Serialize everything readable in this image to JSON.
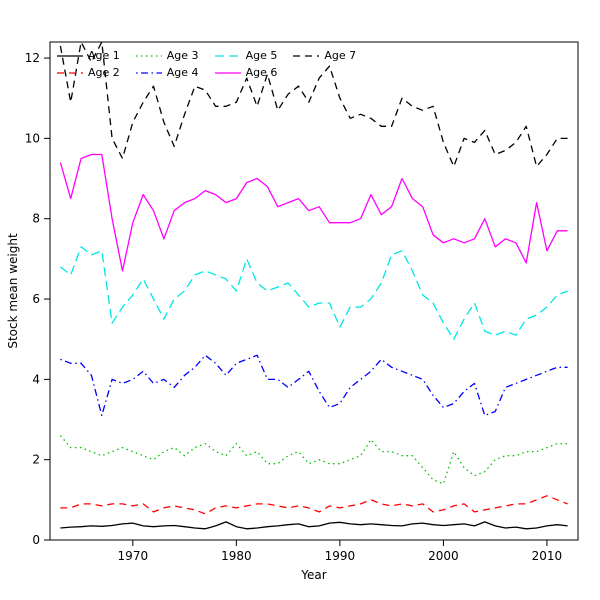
{
  "chart_data": {
    "type": "line",
    "title": "",
    "xlabel": "Year",
    "ylabel": "Stock mean weight",
    "xlim": [
      1962,
      2013
    ],
    "ylim": [
      0,
      12.4
    ],
    "xticks": [
      1970,
      1980,
      1990,
      2000,
      2010
    ],
    "yticks": [
      0,
      2,
      4,
      6,
      8,
      10,
      12
    ],
    "grid": false,
    "legend_position": "top-left",
    "x": [
      1963,
      1964,
      1965,
      1966,
      1967,
      1968,
      1969,
      1970,
      1971,
      1972,
      1973,
      1974,
      1975,
      1976,
      1977,
      1978,
      1979,
      1980,
      1981,
      1982,
      1983,
      1984,
      1985,
      1986,
      1987,
      1988,
      1989,
      1990,
      1991,
      1992,
      1993,
      1994,
      1995,
      1996,
      1997,
      1998,
      1999,
      2000,
      2001,
      2002,
      2003,
      2004,
      2005,
      2006,
      2007,
      2008,
      2009,
      2010,
      2011,
      2012
    ],
    "series": [
      {
        "name": "Age 1",
        "color": "#000000",
        "linestyle": "solid",
        "dash": "",
        "values": [
          0.3,
          0.32,
          0.33,
          0.35,
          0.34,
          0.36,
          0.4,
          0.42,
          0.35,
          0.33,
          0.35,
          0.36,
          0.33,
          0.3,
          0.28,
          0.35,
          0.45,
          0.33,
          0.28,
          0.3,
          0.33,
          0.35,
          0.38,
          0.4,
          0.33,
          0.35,
          0.42,
          0.44,
          0.4,
          0.38,
          0.4,
          0.38,
          0.36,
          0.35,
          0.4,
          0.42,
          0.38,
          0.36,
          0.38,
          0.4,
          0.35,
          0.45,
          0.35,
          0.3,
          0.32,
          0.28,
          0.3,
          0.35,
          0.38,
          0.35
        ]
      },
      {
        "name": "Age 2",
        "color": "#ff0000",
        "linestyle": "dashed",
        "dash": "7,5",
        "values": [
          0.8,
          0.8,
          0.9,
          0.9,
          0.85,
          0.9,
          0.9,
          0.85,
          0.9,
          0.7,
          0.8,
          0.85,
          0.8,
          0.75,
          0.65,
          0.8,
          0.85,
          0.8,
          0.85,
          0.9,
          0.9,
          0.85,
          0.8,
          0.85,
          0.8,
          0.7,
          0.85,
          0.8,
          0.85,
          0.9,
          1.0,
          0.9,
          0.85,
          0.9,
          0.85,
          0.9,
          0.7,
          0.75,
          0.85,
          0.9,
          0.7,
          0.75,
          0.8,
          0.85,
          0.9,
          0.9,
          1.0,
          1.1,
          1.0,
          0.9
        ]
      },
      {
        "name": "Age 3",
        "color": "#00c000",
        "linestyle": "dotted",
        "dash": "1.5,3.5",
        "values": [
          2.6,
          2.3,
          2.3,
          2.2,
          2.1,
          2.2,
          2.3,
          2.2,
          2.1,
          2.0,
          2.2,
          2.3,
          2.1,
          2.3,
          2.4,
          2.2,
          2.1,
          2.4,
          2.1,
          2.2,
          1.9,
          1.9,
          2.1,
          2.2,
          1.9,
          2.0,
          1.9,
          1.9,
          2.0,
          2.1,
          2.5,
          2.2,
          2.2,
          2.1,
          2.1,
          1.8,
          1.5,
          1.4,
          2.2,
          1.8,
          1.6,
          1.7,
          2.0,
          2.1,
          2.1,
          2.2,
          2.2,
          2.3,
          2.4,
          2.4
        ]
      },
      {
        "name": "Age 4",
        "color": "#0000ff",
        "linestyle": "dashdot",
        "dash": "1.5,3.5,7,3.5",
        "values": [
          4.5,
          4.4,
          4.4,
          4.1,
          3.1,
          4.0,
          3.9,
          4.0,
          4.2,
          3.9,
          4.0,
          3.8,
          4.1,
          4.3,
          4.6,
          4.4,
          4.1,
          4.4,
          4.5,
          4.6,
          4.0,
          4.0,
          3.8,
          4.0,
          4.2,
          3.7,
          3.3,
          3.4,
          3.8,
          4.0,
          4.2,
          4.5,
          4.3,
          4.2,
          4.1,
          4.0,
          3.6,
          3.3,
          3.4,
          3.7,
          3.9,
          3.1,
          3.2,
          3.8,
          3.9,
          4.0,
          4.1,
          4.2,
          4.3,
          4.3
        ]
      },
      {
        "name": "Age 5",
        "color": "#00e6e6",
        "linestyle": "longdash",
        "dash": "9,5",
        "values": [
          6.8,
          6.6,
          7.3,
          7.1,
          7.2,
          5.4,
          5.8,
          6.1,
          6.5,
          6.0,
          5.5,
          6.0,
          6.2,
          6.6,
          6.7,
          6.6,
          6.5,
          6.2,
          7.0,
          6.4,
          6.2,
          6.3,
          6.4,
          6.1,
          5.8,
          5.9,
          5.9,
          5.3,
          5.8,
          5.8,
          6.0,
          6.4,
          7.1,
          7.2,
          6.7,
          6.1,
          5.9,
          5.4,
          5.0,
          5.5,
          5.9,
          5.2,
          5.1,
          5.2,
          5.1,
          5.5,
          5.6,
          5.8,
          6.1,
          6.2
        ]
      },
      {
        "name": "Age 6",
        "color": "#ff00ff",
        "linestyle": "solid",
        "dash": "",
        "values": [
          9.4,
          8.5,
          9.5,
          9.6,
          9.6,
          8.0,
          6.7,
          7.9,
          8.6,
          8.2,
          7.5,
          8.2,
          8.4,
          8.5,
          8.7,
          8.6,
          8.4,
          8.5,
          8.9,
          9.0,
          8.8,
          8.3,
          8.4,
          8.5,
          8.2,
          8.3,
          7.9,
          7.9,
          7.9,
          8.0,
          8.6,
          8.1,
          8.3,
          9.0,
          8.5,
          8.3,
          7.6,
          7.4,
          7.5,
          7.4,
          7.5,
          8.0,
          7.3,
          7.5,
          7.4,
          6.9,
          8.4,
          7.2,
          7.7,
          7.7
        ]
      },
      {
        "name": "Age 7",
        "color": "#000000",
        "linestyle": "dashed",
        "dash": "7,5",
        "values": [
          12.3,
          10.9,
          12.4,
          11.9,
          12.4,
          10.0,
          9.5,
          10.4,
          10.9,
          11.3,
          10.4,
          9.8,
          10.6,
          11.3,
          11.2,
          10.8,
          10.8,
          10.9,
          11.5,
          10.8,
          11.6,
          10.7,
          11.1,
          11.3,
          10.9,
          11.5,
          11.8,
          11.0,
          10.5,
          10.6,
          10.5,
          10.3,
          10.3,
          11.0,
          10.8,
          10.7,
          10.8,
          9.9,
          9.3,
          10.0,
          9.9,
          10.2,
          9.6,
          9.7,
          9.9,
          10.3,
          9.3,
          9.6,
          10.0,
          10.0
        ]
      }
    ]
  }
}
